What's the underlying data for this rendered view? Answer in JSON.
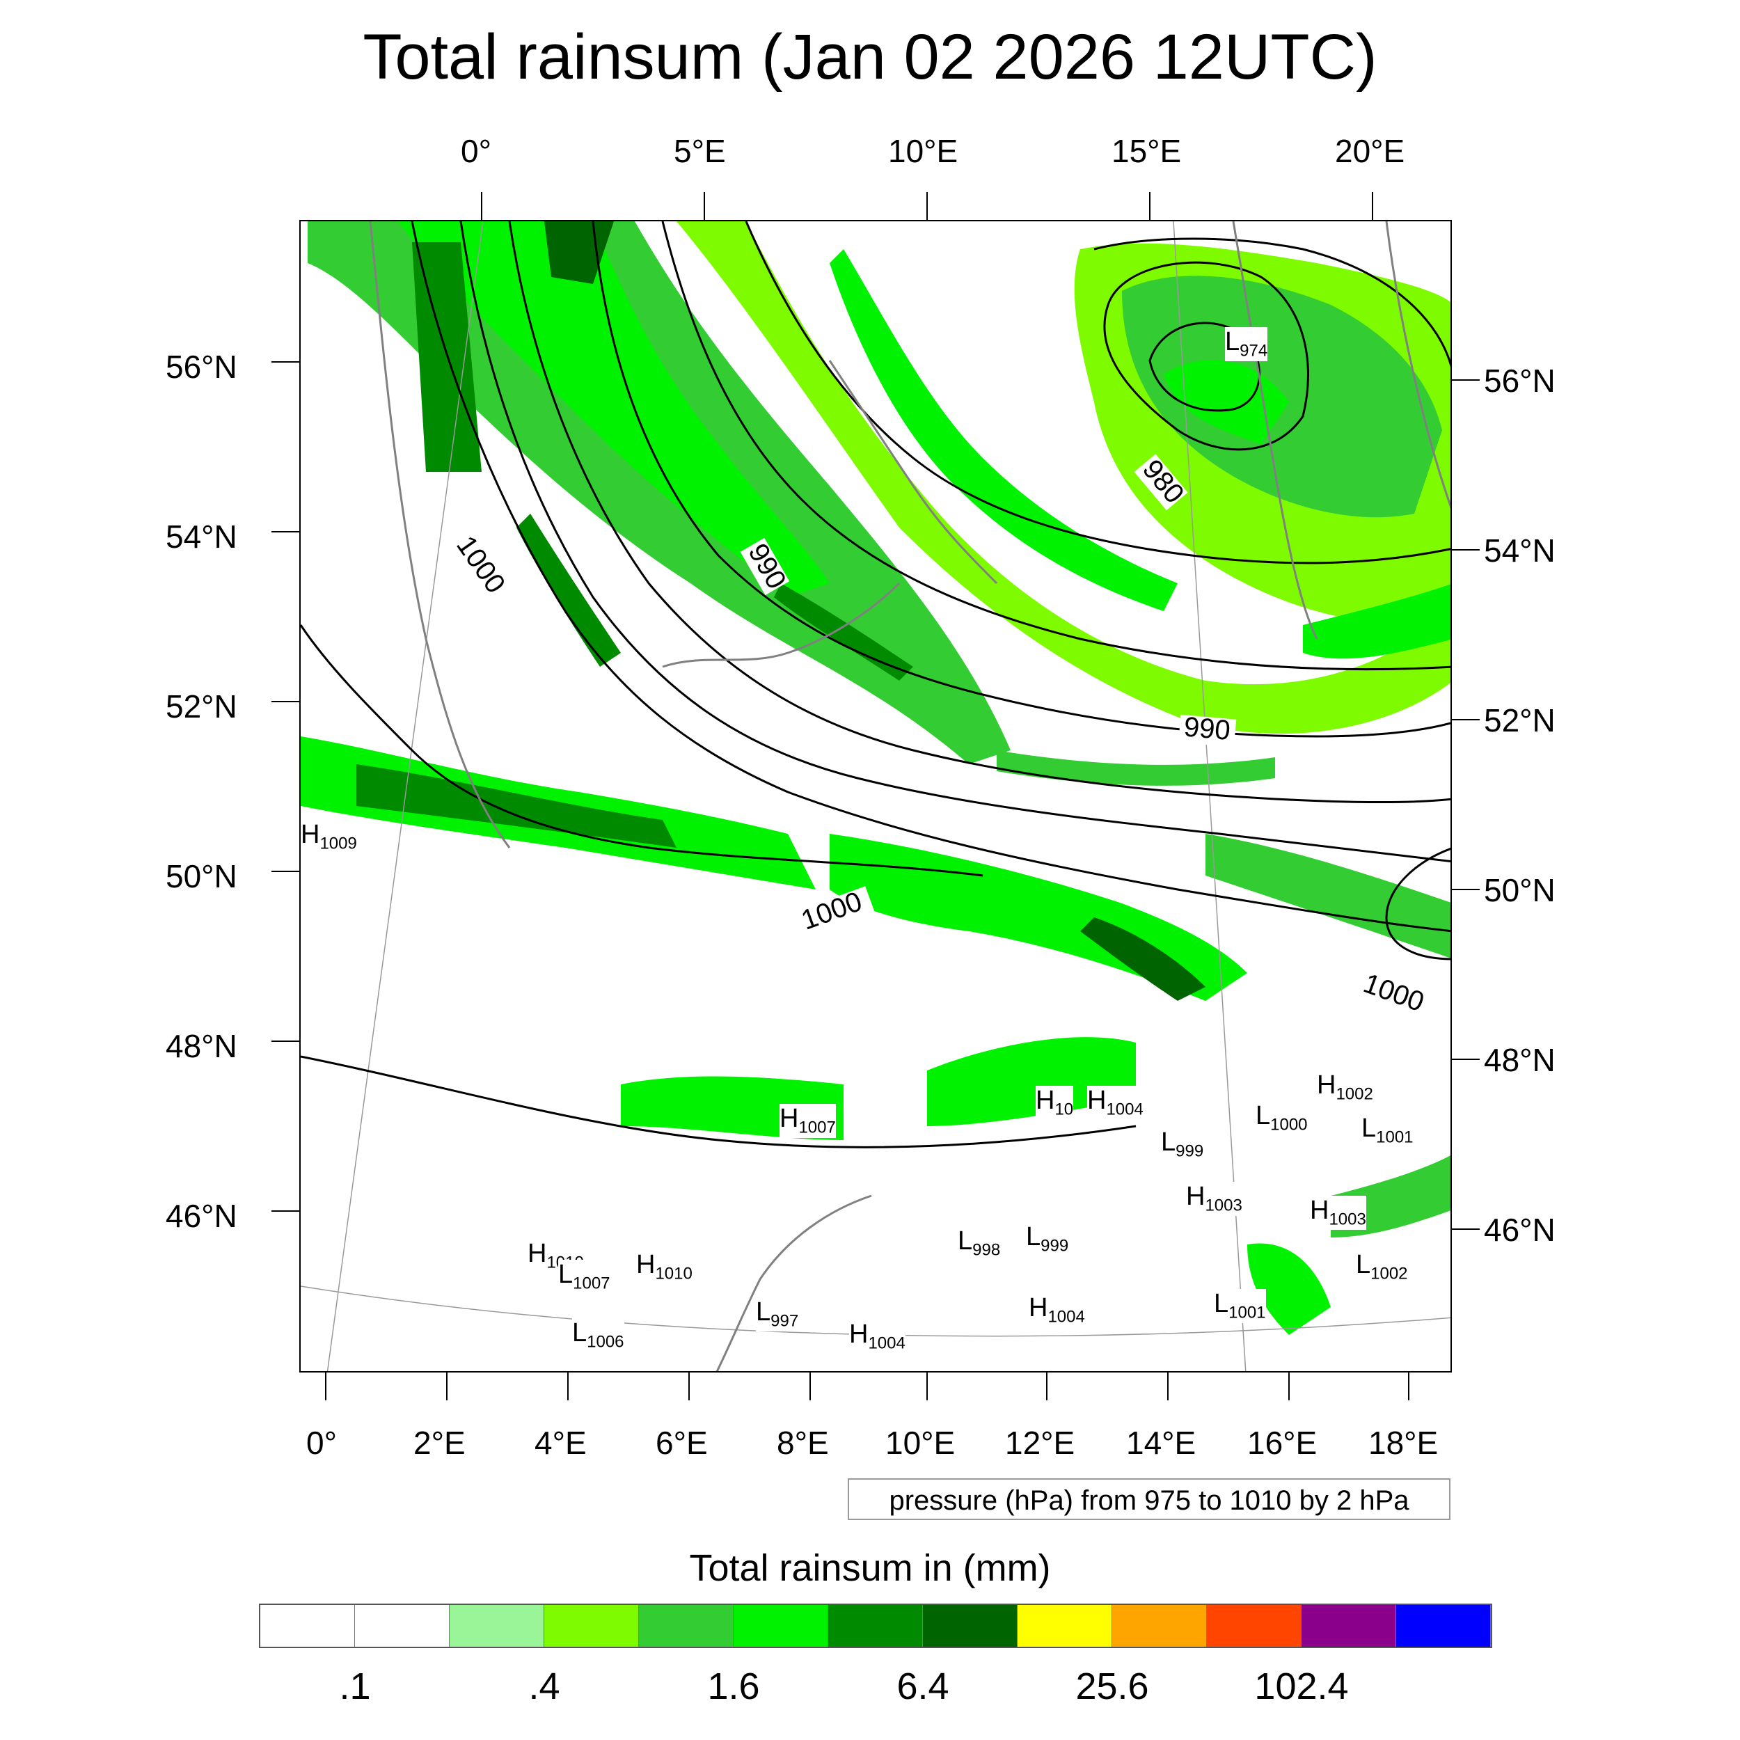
{
  "title": "Total rainsum (Jan 02 2026 12UTC)",
  "map": {
    "top_lon_labels": [
      "0°",
      "5°E",
      "10°E",
      "15°E",
      "20°E"
    ],
    "bottom_lon_labels": [
      "0°",
      "2°E",
      "4°E",
      "6°E",
      "8°E",
      "10°E",
      "12°E",
      "14°E",
      "16°E",
      "18°E"
    ],
    "left_lat_labels": [
      "56°N",
      "54°N",
      "52°N",
      "50°N",
      "48°N",
      "46°N"
    ],
    "right_lat_labels": [
      "56°N",
      "54°N",
      "52°N",
      "50°N",
      "48°N",
      "46°N"
    ],
    "isobar_labels": [
      "1000",
      "990",
      "980",
      "990",
      "1000",
      "1000"
    ],
    "pressure_centers": [
      {
        "type": "L",
        "value": "974"
      },
      {
        "type": "H",
        "value": "1009"
      },
      {
        "type": "H",
        "value": "1007"
      },
      {
        "type": "H",
        "value": "10"
      },
      {
        "type": "H",
        "value": "1004"
      },
      {
        "type": "H",
        "value": "1002"
      },
      {
        "type": "L",
        "value": "1000"
      },
      {
        "type": "L",
        "value": "1001"
      },
      {
        "type": "L",
        "value": "999"
      },
      {
        "type": "H",
        "value": "1003"
      },
      {
        "type": "H",
        "value": "1003"
      },
      {
        "type": "L",
        "value": "998"
      },
      {
        "type": "L",
        "value": "999"
      },
      {
        "type": "L",
        "value": "1002"
      },
      {
        "type": "H",
        "value": "1010"
      },
      {
        "type": "H",
        "value": "1010"
      },
      {
        "type": "L",
        "value": "1007"
      },
      {
        "type": "L",
        "value": "997"
      },
      {
        "type": "H",
        "value": "1004"
      },
      {
        "type": "H",
        "value": "1004"
      },
      {
        "type": "L",
        "value": "1006"
      },
      {
        "type": "L",
        "value": "1001"
      }
    ]
  },
  "contour_info": "pressure (hPa) from 975 to 1010 by 2 hPa",
  "legend": {
    "title": "Total rainsum in (mm)",
    "colors": [
      "#ffffff",
      "#ffffff",
      "#99f598",
      "#7ffb00",
      "#33cc33",
      "#00f200",
      "#008a00",
      "#006400",
      "#ffff00",
      "#ffa500",
      "#ff4500",
      "#8b008b",
      "#0000ff"
    ],
    "labels": [
      ".1",
      ".4",
      "1.6",
      "6.4",
      "25.6",
      "102.4"
    ]
  }
}
